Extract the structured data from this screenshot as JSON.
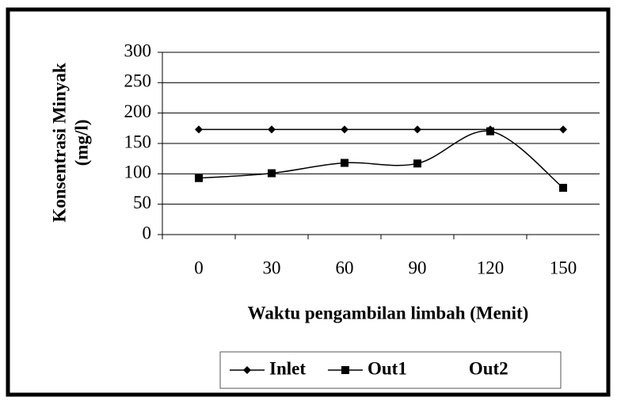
{
  "chart_data": {
    "type": "line",
    "x_label": "Waktu pengambilan limbah (Menit)",
    "y_label": [
      "Konsentrasi Minyak",
      "(mg/l)"
    ],
    "categories": [
      "0",
      "30",
      "60",
      "90",
      "120",
      "150"
    ],
    "series": [
      {
        "name": "Inlet",
        "color": "#000000",
        "marker": "diamond",
        "smooth": false,
        "values": [
          173,
          173,
          173,
          173,
          173,
          173
        ]
      },
      {
        "name": "Out1",
        "color": "#000000",
        "marker": "square",
        "smooth": true,
        "values": [
          93,
          101,
          118,
          117,
          170,
          77
        ]
      },
      {
        "name": "Out2",
        "color": "#000000",
        "marker": "none",
        "smooth": false,
        "values": [
          null,
          null,
          null,
          null,
          null,
          null
        ]
      }
    ],
    "ylim": [
      0,
      300
    ],
    "yticks": [
      0,
      50,
      100,
      150,
      200,
      250,
      300
    ],
    "grid": true,
    "legend": "bottom"
  }
}
